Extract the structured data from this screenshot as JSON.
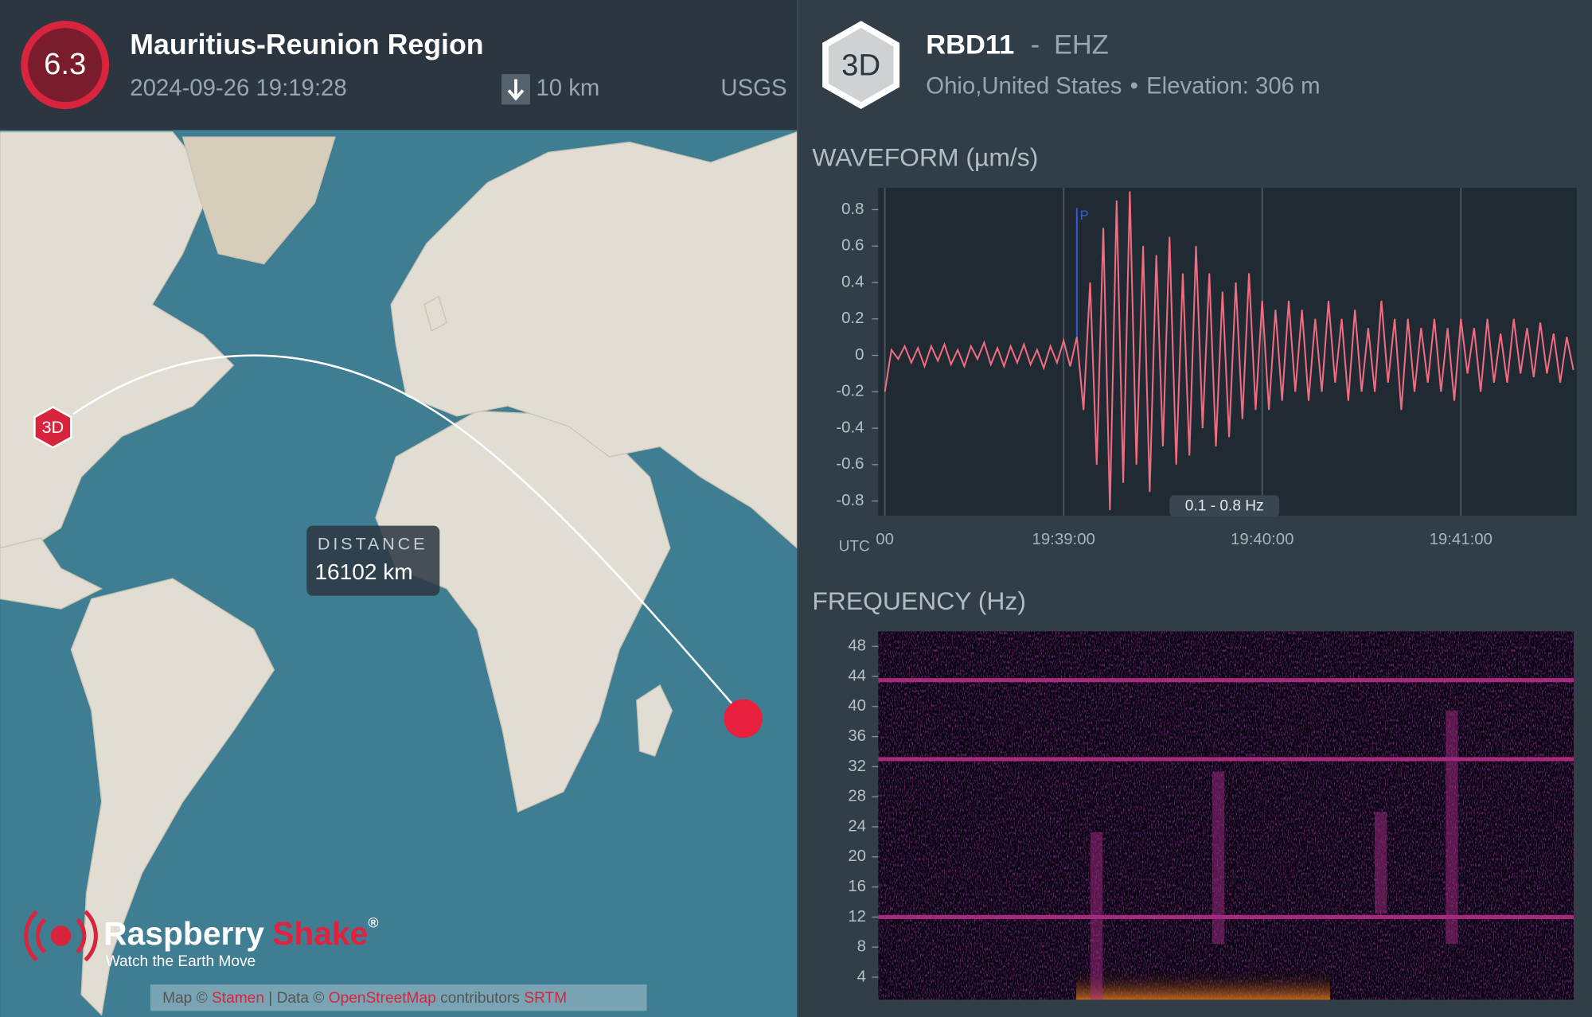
{
  "event": {
    "magnitude": "6.3",
    "region": "Mauritius-Reunion Region",
    "time": "2024-09-26 19:19:28",
    "depth": "10 km",
    "source": "USGS"
  },
  "station": {
    "badge": "3D",
    "code": "RBD11",
    "separator": "-",
    "channel": "EHZ",
    "location": "Ohio,United States",
    "bullet": "•",
    "elevation": "Elevation: 306 m"
  },
  "map": {
    "station_marker": "3D",
    "distance_label": "DISTANCE",
    "distance": "16102 km",
    "brand": "Raspberry",
    "brand_accent": "Shake",
    "registered": "®",
    "tagline": "Watch the Earth Move",
    "attribution": [
      "Map ©",
      "Stamen",
      "| Data ©",
      "OpenStreetMap",
      "contributors",
      "SRTM"
    ]
  },
  "chart_data": [
    {
      "type": "line",
      "title": "WAVEFORM (µm/s)",
      "x_axis_label": "UTC",
      "filter": "0.1 - 0.8 Hz",
      "pick": {
        "label": "P",
        "x": 70744
      },
      "color": "#f26b80",
      "grid": true,
      "xlim": [
        70684,
        70895
      ],
      "ylim": [
        -0.88,
        0.92
      ],
      "xticks": [
        {
          "value": 70686,
          "label": "00"
        },
        {
          "value": 70740,
          "label": "19:39:00"
        },
        {
          "value": 70800,
          "label": "19:40:00"
        },
        {
          "value": 70860,
          "label": "19:41:00"
        }
      ],
      "yticks": [
        0.8,
        0.6,
        0.4,
        0.2,
        0,
        -0.2,
        -0.4,
        -0.6,
        -0.8
      ],
      "x": [
        70686,
        70688,
        70690,
        70692,
        70694,
        70696,
        70698,
        70700,
        70702,
        70704,
        70706,
        70708,
        70710,
        70712,
        70714,
        70716,
        70718,
        70720,
        70722,
        70724,
        70726,
        70728,
        70730,
        70732,
        70734,
        70736,
        70738,
        70740,
        70742,
        70744,
        70746,
        70748,
        70750,
        70752,
        70754,
        70756,
        70758,
        70760,
        70762,
        70764,
        70766,
        70768,
        70770,
        70772,
        70774,
        70776,
        70778,
        70780,
        70782,
        70784,
        70786,
        70788,
        70790,
        70792,
        70794,
        70796,
        70798,
        70800,
        70802,
        70804,
        70806,
        70808,
        70810,
        70812,
        70814,
        70816,
        70818,
        70820,
        70822,
        70824,
        70826,
        70828,
        70830,
        70832,
        70834,
        70836,
        70838,
        70840,
        70842,
        70844,
        70846,
        70848,
        70850,
        70852,
        70854,
        70856,
        70858,
        70860,
        70862,
        70864,
        70866,
        70868,
        70870,
        70872,
        70874,
        70876,
        70878,
        70880,
        70882,
        70884,
        70886,
        70888,
        70890,
        70892,
        70894
      ],
      "values": [
        -0.2,
        0.03,
        -0.02,
        0.05,
        -0.04,
        0.04,
        -0.06,
        0.05,
        -0.03,
        0.06,
        -0.05,
        0.03,
        -0.06,
        0.05,
        -0.02,
        0.07,
        -0.05,
        0.04,
        -0.06,
        0.05,
        -0.04,
        0.06,
        -0.05,
        0.03,
        -0.07,
        0.05,
        -0.04,
        0.08,
        -0.06,
        0.1,
        -0.3,
        0.4,
        -0.6,
        0.7,
        -0.85,
        0.85,
        -0.7,
        0.9,
        -0.6,
        0.6,
        -0.75,
        0.55,
        -0.5,
        0.65,
        -0.6,
        0.45,
        -0.55,
        0.6,
        -0.4,
        0.45,
        -0.5,
        0.35,
        -0.45,
        0.4,
        -0.35,
        0.45,
        -0.3,
        0.3,
        -0.3,
        0.25,
        -0.25,
        0.3,
        -0.2,
        0.25,
        -0.25,
        0.2,
        -0.2,
        0.3,
        -0.15,
        0.2,
        -0.25,
        0.25,
        -0.2,
        0.15,
        -0.2,
        0.3,
        -0.15,
        0.2,
        -0.3,
        0.2,
        -0.2,
        0.15,
        -0.15,
        0.2,
        -0.2,
        0.15,
        -0.25,
        0.2,
        -0.1,
        0.15,
        -0.2,
        0.2,
        -0.15,
        0.12,
        -0.15,
        0.2,
        -0.1,
        0.15,
        -0.12,
        0.18,
        -0.1,
        0.12,
        -0.15,
        0.1,
        -0.08
      ]
    },
    {
      "type": "spectrogram",
      "title": "FREQUENCY (Hz)",
      "ylim": [
        1,
        50
      ],
      "yticks": [
        48,
        44,
        40,
        36,
        32,
        28,
        24,
        20,
        16,
        12,
        8,
        4
      ]
    }
  ]
}
